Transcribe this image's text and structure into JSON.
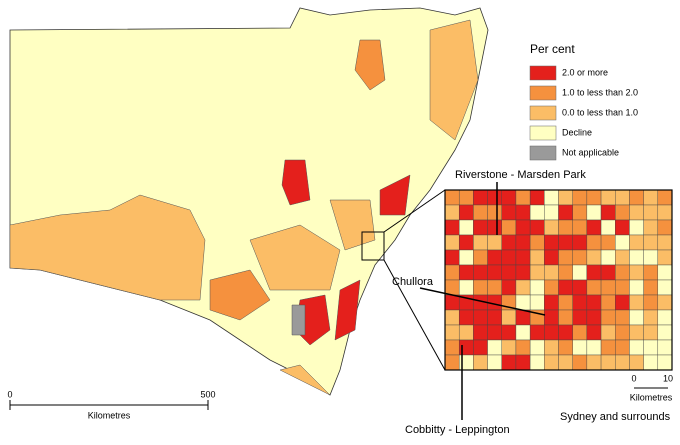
{
  "legend": {
    "title": "Per cent",
    "items": [
      {
        "label": "2.0 or more",
        "color": "#e4201c"
      },
      {
        "label": "1.0 to less than 2.0",
        "color": "#f5913e"
      },
      {
        "label": "0.0 to less than 1.0",
        "color": "#fbbd66"
      },
      {
        "label": "Decline",
        "color": "#ffffc2"
      },
      {
        "label": "Not applicable",
        "color": "#9a9a9a"
      }
    ]
  },
  "labels": {
    "riverstone": "Riverstone - Marsden Park",
    "chullora": "Chullora",
    "cobbitty": "Cobbitty - Leppington",
    "inset_title": "Sydney and surrounds"
  },
  "scale_bar": {
    "start": "0",
    "end": "500",
    "unit": "Kilometres"
  },
  "inset_scale_bar": {
    "start": "0",
    "end": "10",
    "unit": "Kilometres"
  }
}
